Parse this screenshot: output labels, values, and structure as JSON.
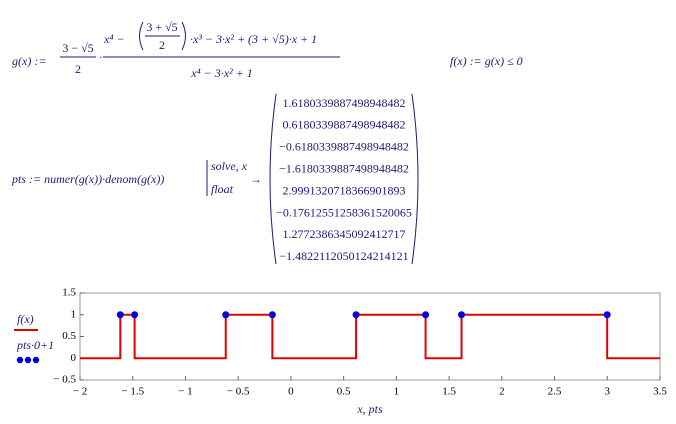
{
  "worksheet": {
    "g_def": {
      "lhs": "g(x) :=",
      "coef_num": "3 − √5",
      "coef_den": "2",
      "num_start": "x⁴ −",
      "inner_num": "3 + √5",
      "inner_den": "2",
      "num_end": "·x³ − 3·x² + (3 + √5)·x + 1",
      "den": "x⁴ − 3·x² + 1"
    },
    "f_def": "f(x) := g(x) ≤ 0",
    "pts_def": {
      "lhs": "pts := numer(g(x))·denom(g(x))",
      "keyword1": "solve, x",
      "keyword2": "float",
      "arrow": "→",
      "results": [
        "1.6180339887498948482",
        "0.6180339887498948482",
        "−0.6180339887498948482",
        "−1.6180339887498948482",
        "2.9991320718366901893",
        "−0.17612551258361520065",
        "1.2772386345092412717",
        "−1.4822112050124214121"
      ]
    }
  },
  "chart_data": {
    "type": "line",
    "xlabel": "x, pts",
    "xlim": [
      -2,
      3.5
    ],
    "ylim": [
      -0.5,
      1.5
    ],
    "xticks": [
      {
        "value": -2,
        "label": "− 2"
      },
      {
        "value": -1.5,
        "label": "− 1.5"
      },
      {
        "value": -1,
        "label": "− 1"
      },
      {
        "value": -0.5,
        "label": "− 0.5"
      },
      0,
      0.5,
      1,
      1.5,
      2,
      2.5,
      3,
      3.5
    ],
    "yticks": [
      {
        "value": -0.5,
        "label": "− 0.5"
      },
      0,
      0.5,
      1,
      1.5
    ],
    "series": [
      {
        "name": "f(x)",
        "color": "#e00000",
        "style": "line",
        "x": [
          -2,
          -1.618,
          -1.618,
          -1.482,
          -1.482,
          -0.618,
          -0.618,
          -0.176,
          -0.176,
          0.618,
          0.618,
          1.277,
          1.277,
          1.618,
          1.618,
          2.999,
          2.999,
          3.5
        ],
        "values": [
          0,
          0,
          1,
          1,
          0,
          0,
          1,
          1,
          0,
          0,
          1,
          1,
          0,
          0,
          1,
          1,
          0,
          0
        ]
      },
      {
        "name": "pts·0+1",
        "color": "#0000e0",
        "style": "points",
        "x": [
          1.618,
          0.618,
          -0.618,
          -1.618,
          2.999,
          -0.176,
          1.277,
          -1.482
        ],
        "values": [
          1,
          1,
          1,
          1,
          1,
          1,
          1,
          1
        ]
      }
    ]
  }
}
